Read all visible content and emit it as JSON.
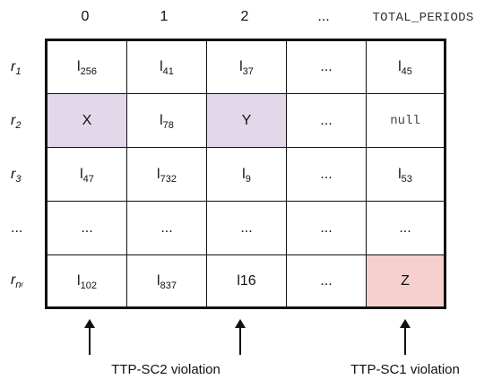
{
  "column_headers": [
    "0",
    "1",
    "2",
    "...",
    "TOTAL_PERIODS"
  ],
  "row_labels": [
    {
      "main": "r",
      "sub": "1",
      "subsub": ""
    },
    {
      "main": "r",
      "sub": "2",
      "subsub": ""
    },
    {
      "main": "r",
      "sub": "3",
      "subsub": ""
    },
    {
      "main": "...",
      "sub": "",
      "subsub": ""
    },
    {
      "main": "r",
      "sub": "n",
      "subsub": "r"
    }
  ],
  "cells": [
    [
      {
        "main": "l",
        "sub": "256"
      },
      {
        "main": "l",
        "sub": "41"
      },
      {
        "main": "l",
        "sub": "37"
      },
      {
        "main": "...",
        "sub": ""
      },
      {
        "main": "l",
        "sub": "45"
      }
    ],
    [
      {
        "main": "X",
        "sub": ""
      },
      {
        "main": "l",
        "sub": "78"
      },
      {
        "main": "Y",
        "sub": ""
      },
      {
        "main": "...",
        "sub": ""
      },
      {
        "main": "null",
        "sub": ""
      }
    ],
    [
      {
        "main": "l",
        "sub": "47"
      },
      {
        "main": "l",
        "sub": "732"
      },
      {
        "main": "l",
        "sub": "9"
      },
      {
        "main": "...",
        "sub": ""
      },
      {
        "main": "l",
        "sub": "53"
      }
    ],
    [
      {
        "main": "...",
        "sub": ""
      },
      {
        "main": "...",
        "sub": ""
      },
      {
        "main": "...",
        "sub": ""
      },
      {
        "main": "...",
        "sub": ""
      },
      {
        "main": "...",
        "sub": ""
      }
    ],
    [
      {
        "main": "l",
        "sub": "102"
      },
      {
        "main": "l",
        "sub": "837"
      },
      {
        "main": "l16",
        "sub": ""
      },
      {
        "main": "...",
        "sub": ""
      },
      {
        "main": "Z",
        "sub": ""
      }
    ]
  ],
  "highlights": {
    "purple": "#e3d8ea",
    "pink": "#f6cfcf"
  },
  "annotations": {
    "sc2": "TTP-SC2 violation",
    "sc1": "TTP-SC1 violation"
  }
}
